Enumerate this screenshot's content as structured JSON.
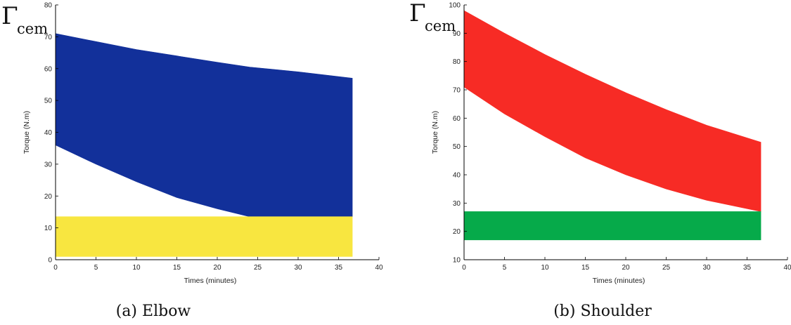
{
  "figure": {
    "panels": [
      {
        "symbol": "Γ",
        "symbol_sub": "cem",
        "caption": "(a)  Elbow"
      },
      {
        "symbol": "Γ",
        "symbol_sub": "cem",
        "caption": "(b)  Shoulder"
      }
    ]
  },
  "chart_data": [
    {
      "type": "area",
      "xlabel": "Times (minutes)",
      "ylabel": "Torque (N.m)",
      "xlim": [
        0,
        40
      ],
      "ylim": [
        0,
        80
      ],
      "xticks": [
        0,
        5,
        10,
        15,
        20,
        25,
        30,
        35,
        40
      ],
      "yticks": [
        0,
        10,
        20,
        30,
        40,
        50,
        60,
        70,
        80
      ],
      "grid": false,
      "series": [
        {
          "color": "#12309a",
          "x": [
            0,
            5,
            10,
            15,
            20,
            24,
            30,
            36.7
          ],
          "upper": [
            71,
            68.5,
            66,
            64,
            62,
            60.5,
            59,
            57
          ],
          "lower": [
            36,
            30,
            24.5,
            19.5,
            16,
            13.5,
            13.5,
            13.5
          ]
        },
        {
          "color": "#f8e640",
          "x": [
            0,
            36.7
          ],
          "upper": [
            13.5,
            13.5
          ],
          "lower": [
            1,
            1
          ]
        }
      ]
    },
    {
      "type": "area",
      "xlabel": "Times (minutes)",
      "ylabel": "Torque (N.m)",
      "xlim": [
        0,
        40
      ],
      "ylim": [
        10,
        100
      ],
      "xticks": [
        0,
        5,
        10,
        15,
        20,
        25,
        30,
        35,
        40
      ],
      "yticks": [
        10,
        20,
        30,
        40,
        50,
        60,
        70,
        80,
        90,
        100
      ],
      "grid": false,
      "series": [
        {
          "color": "#f72b25",
          "x": [
            0,
            5,
            10,
            15,
            20,
            25,
            30,
            36.7
          ],
          "upper": [
            98,
            90,
            82.5,
            75.5,
            69,
            63,
            57.5,
            51.5
          ],
          "lower": [
            71,
            61.5,
            53.5,
            46,
            40,
            35,
            31,
            27
          ]
        },
        {
          "color": "#06aa4a",
          "x": [
            0,
            36.7
          ],
          "upper": [
            27,
            27
          ],
          "lower": [
            17,
            17
          ]
        }
      ]
    }
  ]
}
